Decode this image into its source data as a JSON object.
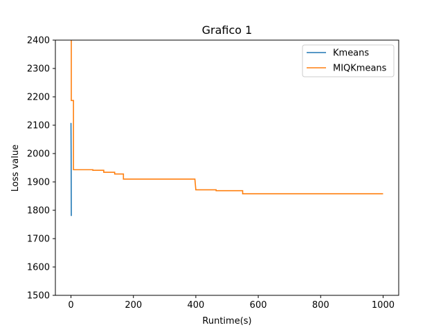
{
  "chart_data": {
    "type": "line",
    "title": "Grafico 1",
    "xlabel": "Runtime(s)",
    "ylabel": "Loss value",
    "xlim": [
      -50,
      1050
    ],
    "ylim": [
      1500,
      2400
    ],
    "xticks": [
      0,
      200,
      400,
      600,
      800,
      1000
    ],
    "yticks": [
      1500,
      1600,
      1700,
      1800,
      1900,
      2000,
      2100,
      2200,
      2300,
      2400
    ],
    "grid": false,
    "legend_position": "upper right",
    "series": [
      {
        "name": "Kmeans",
        "color": "#1f77b4",
        "points": [
          [
            0,
            2108
          ],
          [
            0.5,
            2000
          ],
          [
            1,
            1780
          ]
        ]
      },
      {
        "name": "MIQKmeans",
        "color": "#ff7f0e",
        "points": [
          [
            1,
            2400
          ],
          [
            1,
            2187
          ],
          [
            8,
            2187
          ],
          [
            8,
            1943
          ],
          [
            70,
            1943
          ],
          [
            70,
            1941
          ],
          [
            105,
            1941
          ],
          [
            105,
            1934
          ],
          [
            140,
            1934
          ],
          [
            140,
            1928
          ],
          [
            168,
            1928
          ],
          [
            168,
            1910
          ],
          [
            397,
            1910
          ],
          [
            400,
            1872
          ],
          [
            465,
            1872
          ],
          [
            465,
            1869
          ],
          [
            550,
            1869
          ],
          [
            550,
            1858
          ],
          [
            1000,
            1858
          ]
        ]
      }
    ]
  }
}
